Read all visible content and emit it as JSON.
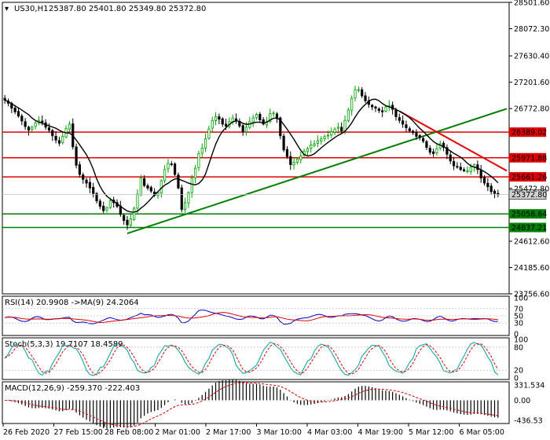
{
  "header": {
    "symbol": "US30,H1",
    "ohlc": "25387.80 25401.80 25349.80 25372.80"
  },
  "colors": {
    "bull_candle": "#00a000",
    "bear_candle": "#000000",
    "support_line": "#008000",
    "resistance_line": "#e00000",
    "ma_line": "#000000",
    "rsi_line": "#0000c0",
    "rsi_ma_line": "#e00000",
    "stoch_main": "#00a0a0",
    "stoch_signal": "#e00000",
    "macd_hist": "#000000",
    "macd_signal": "#e00000",
    "current_price_box": "#d0d0d0"
  },
  "price_axis": {
    "ticks": [
      "28501.60",
      "28072.30",
      "27630.40",
      "27201.60",
      "26772.80",
      "25472.80",
      "24612.60",
      "24185.60",
      "23756.60"
    ]
  },
  "levels": [
    {
      "label": "26389.02",
      "value": 26389.02,
      "kind": "resistance"
    },
    {
      "label": "25971.88",
      "value": 25971.88,
      "kind": "resistance"
    },
    {
      "label": "25661.26",
      "value": 25661.26,
      "kind": "resistance"
    },
    {
      "label": "25058.64",
      "value": 25058.64,
      "kind": "support"
    },
    {
      "label": "24837.21",
      "value": 24837.21,
      "kind": "support"
    }
  ],
  "current_price": {
    "label": "25372.80",
    "value": 25372.8
  },
  "time_axis": {
    "labels": [
      "26 Feb 2020",
      "27 Feb 15:00",
      "28 Feb 08:00",
      "2 Mar 01:00",
      "2 Mar 17:00",
      "3 Mar 10:00",
      "4 Mar 03:00",
      "4 Mar 19:00",
      "5 Mar 12:00",
      "6 Mar 05:00"
    ]
  },
  "rsi_panel": {
    "title": "RSI(14) 20.9908 ->MA(9) 24.2064",
    "ticks": [
      "100",
      "70",
      "50",
      "30",
      "0"
    ]
  },
  "stoch_panel": {
    "title": "Stoch(5,3,3) 19.7107 18.4589",
    "ticks": [
      "100",
      "80",
      "20",
      "0"
    ]
  },
  "macd_panel": {
    "title": "MACD(12,26,9) -259.370 -222.403",
    "ticks": [
      "331.534",
      "0.00",
      "-436.53"
    ]
  },
  "chart_data": {
    "type": "candlestick",
    "title": "US30,H1",
    "timeframe": "H1",
    "ylim": [
      23756.6,
      28501.6
    ],
    "price_path": [
      26910,
      26860,
      26780,
      26720,
      26650,
      26570,
      26480,
      26420,
      26470,
      26540,
      26580,
      26550,
      26470,
      26420,
      26330,
      26260,
      26210,
      26320,
      26450,
      26520,
      26150,
      25850,
      25700,
      25620,
      25560,
      25480,
      25390,
      25270,
      25180,
      25110,
      25160,
      25270,
      25240,
      25180,
      25050,
      24950,
      24880,
      24980,
      25150,
      25380,
      25640,
      25520,
      25480,
      25430,
      25360,
      25400,
      25600,
      25780,
      25880,
      25860,
      25700,
      25480,
      25130,
      25240,
      25400,
      25640,
      25800,
      26040,
      26130,
      26280,
      26440,
      26580,
      26640,
      26600,
      26520,
      26490,
      26560,
      26620,
      26580,
      26490,
      26400,
      26470,
      26560,
      26620,
      26680,
      26590,
      26520,
      26560,
      26690,
      26700,
      26610,
      26330,
      26100,
      25990,
      25860,
      25900,
      25950,
      26000,
      26080,
      26120,
      26180,
      26200,
      26250,
      26280,
      26320,
      26340,
      26400,
      26440,
      26470,
      26410,
      26580,
      26750,
      26940,
      27080,
      27080,
      26980,
      26900,
      26840,
      26800,
      26780,
      26740,
      26720,
      26800,
      26820,
      26760,
      26640,
      26580,
      26520,
      26460,
      26410,
      26380,
      26320,
      26300,
      26240,
      26140,
      26060,
      26040,
      26120,
      26200,
      26140,
      26030,
      25920,
      25840,
      25820,
      25780,
      25760,
      25760,
      25820,
      25860,
      25780,
      25640,
      25560,
      25500,
      25420,
      25390,
      25372.8
    ]
  }
}
